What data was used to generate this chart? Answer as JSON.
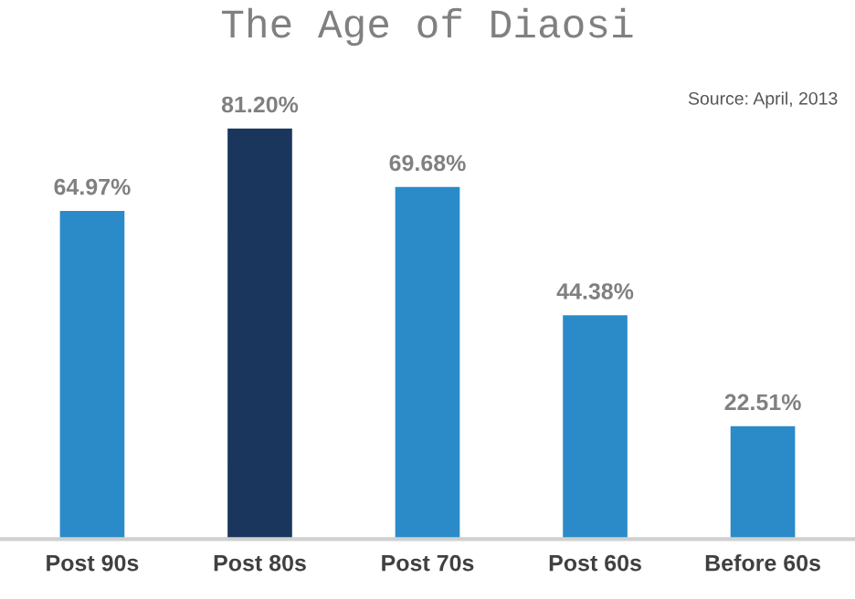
{
  "chart_data": {
    "type": "bar",
    "title": "The Age of Diaosi",
    "categories": [
      "Post 90s",
      "Post 80s",
      "Post 70s",
      "Post 60s",
      "Before 60s"
    ],
    "values": [
      64.97,
      81.2,
      69.68,
      44.38,
      22.51
    ],
    "colors": [
      "#2a8bc8",
      "#1b365d",
      "#2a8bc8",
      "#2a8bc8",
      "#2a8bc8"
    ],
    "value_labels": [
      "64.97%",
      "81.20%",
      "69.68%",
      "44.38%",
      "22.51%"
    ],
    "annotations": [
      "Source: April, 2013"
    ],
    "grid": false,
    "legend": false
  }
}
